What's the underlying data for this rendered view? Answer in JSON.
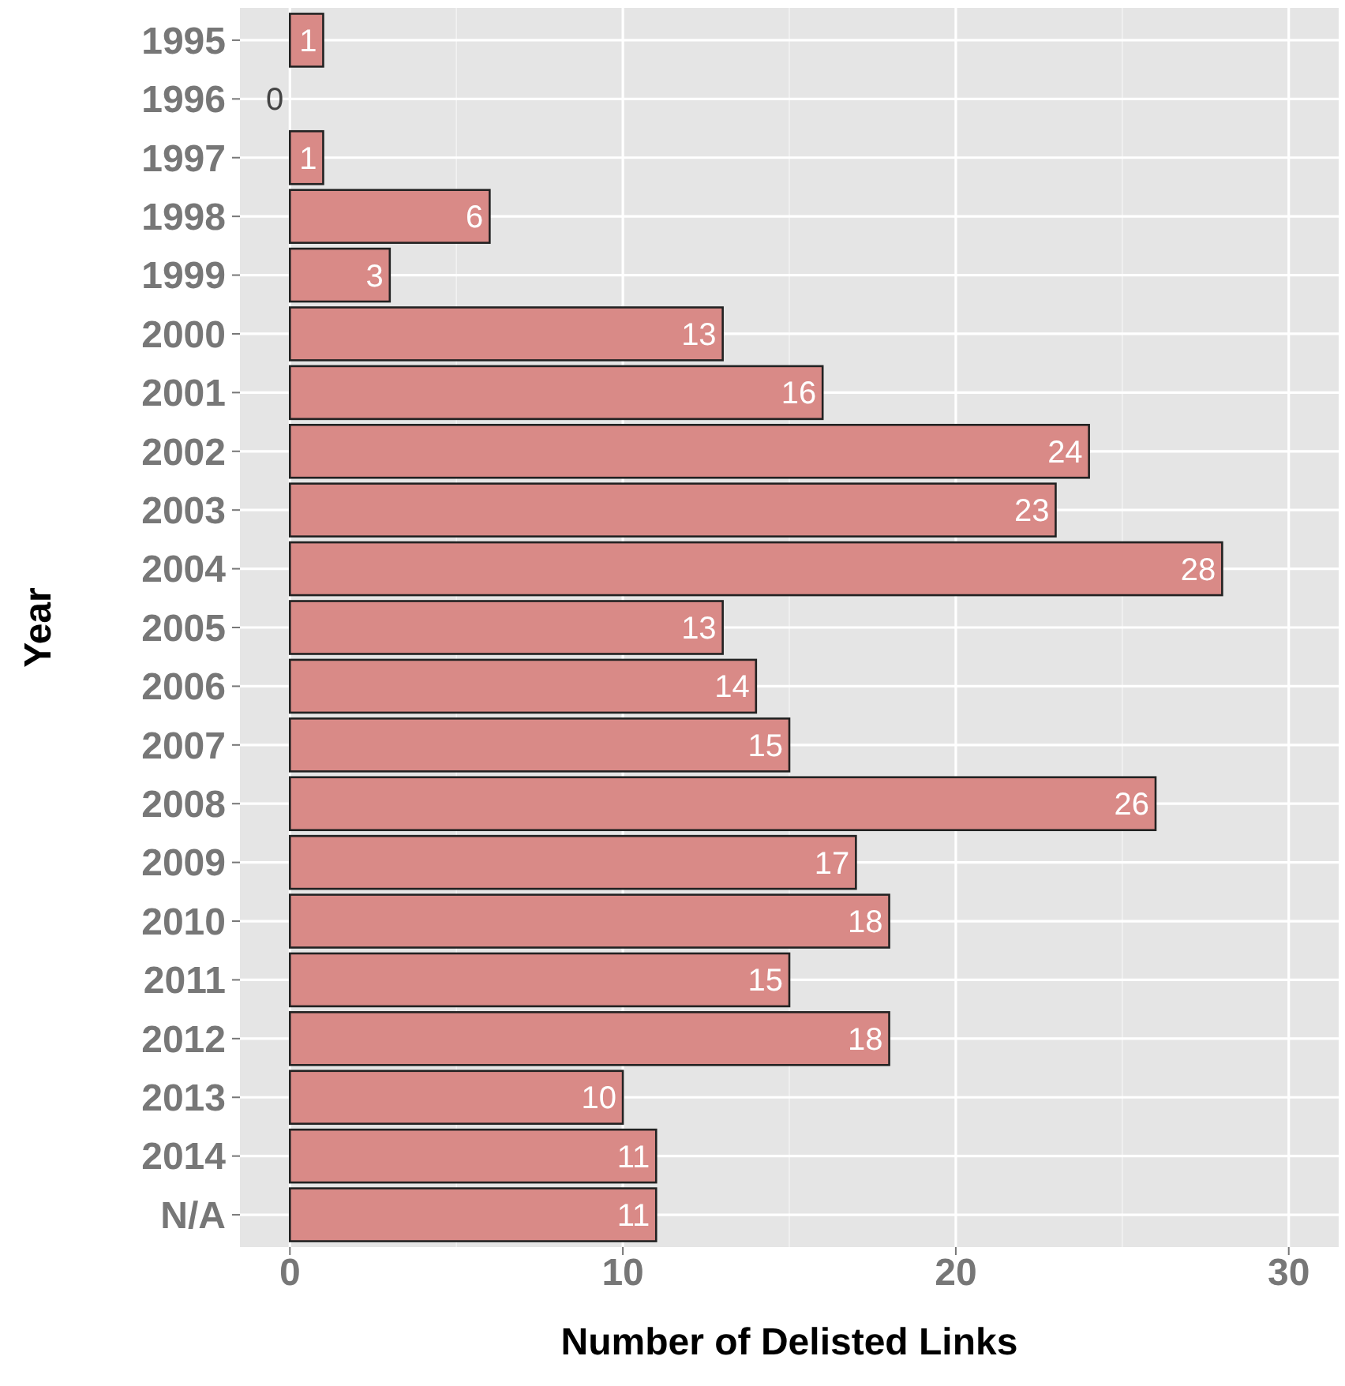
{
  "chart_data": {
    "type": "bar",
    "orientation": "horizontal",
    "xlabel": "Number of Delisted Links",
    "ylabel": "Year",
    "categories": [
      "1995",
      "1996",
      "1997",
      "1998",
      "1999",
      "2000",
      "2001",
      "2002",
      "2003",
      "2004",
      "2005",
      "2006",
      "2007",
      "2008",
      "2009",
      "2010",
      "2011",
      "2012",
      "2013",
      "2014",
      "N/A"
    ],
    "values": [
      1,
      0,
      1,
      6,
      3,
      13,
      16,
      24,
      23,
      28,
      13,
      14,
      15,
      26,
      17,
      18,
      15,
      18,
      10,
      11,
      11
    ],
    "color": "#d98a87",
    "xlim": [
      -1.5,
      31.5
    ],
    "xticks": [
      0,
      10,
      20,
      30
    ],
    "grid": true,
    "data_labels": true
  }
}
